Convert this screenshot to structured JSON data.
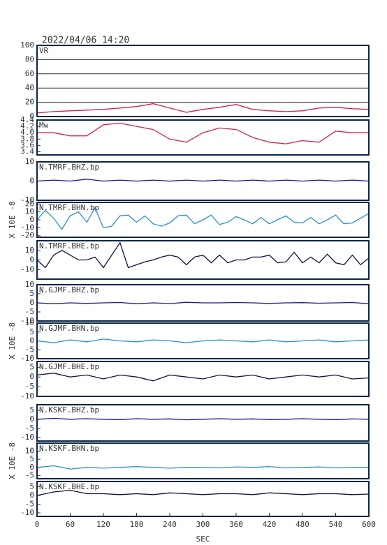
{
  "chart_data": [
    {
      "type": "line",
      "title": "2022/04/06 14:20",
      "label": "VR",
      "color": "#d0204f",
      "grid": true,
      "xlim": [
        0,
        600
      ],
      "ylim": [
        0,
        100
      ],
      "yticks": [
        0,
        20,
        40,
        60,
        80,
        100
      ],
      "x": [
        0,
        30,
        60,
        90,
        120,
        150,
        180,
        210,
        240,
        270,
        300,
        330,
        360,
        390,
        420,
        450,
        480,
        510,
        540,
        570,
        600
      ],
      "values": [
        5,
        7,
        8,
        9,
        10,
        12,
        14,
        18,
        12,
        6,
        10,
        13,
        17,
        10,
        8,
        7,
        8,
        12,
        13,
        11,
        10
      ]
    },
    {
      "type": "line",
      "label": "Mw",
      "color": "#d0204f",
      "xlim": [
        0,
        600
      ],
      "ylim": [
        3.3,
        4.4
      ],
      "yticks": [
        3.4,
        3.6,
        3.8,
        {
          "value": 4,
          "label": "4.0"
        },
        4.2,
        4.4
      ],
      "x": [
        0,
        30,
        60,
        90,
        120,
        150,
        180,
        210,
        240,
        270,
        300,
        330,
        360,
        390,
        420,
        450,
        480,
        510,
        540,
        570,
        600
      ],
      "values": [
        4.0,
        4.0,
        3.9,
        3.9,
        4.25,
        4.3,
        4.2,
        4.1,
        3.8,
        3.7,
        4.0,
        4.15,
        4.1,
        3.85,
        3.7,
        3.65,
        3.75,
        3.7,
        4.05,
        4.0,
        4.0
      ]
    },
    {
      "type": "line",
      "label": "N.TMRF.BHZ.bp",
      "color": "#1a1a8c",
      "xlim": [
        0,
        600
      ],
      "ylim": [
        -10,
        10
      ],
      "yticks": [
        -10,
        0,
        10
      ],
      "x": [
        0,
        30,
        60,
        90,
        120,
        150,
        180,
        210,
        240,
        270,
        300,
        330,
        360,
        390,
        420,
        450,
        480,
        510,
        540,
        570,
        600
      ],
      "values": [
        0,
        0.5,
        0,
        1,
        0,
        0.5,
        0,
        0.5,
        0,
        0.5,
        0,
        0.5,
        0,
        0.5,
        0,
        0.5,
        0,
        0.5,
        0,
        0.5,
        0
      ]
    },
    {
      "type": "line",
      "label": "N.TMRF.BHN.bp",
      "ylabel": "X 10E -8",
      "color": "#2a8fd0",
      "xlim": [
        0,
        600
      ],
      "ylim": [
        -22,
        22
      ],
      "yticks": [
        -20,
        -10,
        0,
        10,
        20
      ],
      "x": [
        0,
        15,
        30,
        45,
        60,
        75,
        90,
        105,
        120,
        135,
        150,
        165,
        180,
        195,
        210,
        225,
        240,
        255,
        270,
        285,
        300,
        315,
        330,
        345,
        360,
        375,
        390,
        405,
        420,
        435,
        450,
        465,
        480,
        495,
        510,
        525,
        540,
        555,
        570,
        585,
        600
      ],
      "values": [
        0,
        12,
        2,
        -12,
        5,
        10,
        -3,
        15,
        -10,
        -8,
        5,
        6,
        -3,
        5,
        -5,
        -8,
        -4,
        5,
        6,
        -5,
        0,
        6,
        -6,
        -3,
        4,
        0,
        -5,
        3,
        -5,
        0,
        5,
        -3,
        -4,
        3,
        -5,
        0,
        6,
        -5,
        -4,
        2,
        8
      ]
    },
    {
      "type": "line",
      "label": "N.TMRF.BHE.bp",
      "color": "#101040",
      "xlim": [
        0,
        600
      ],
      "ylim": [
        -20,
        20
      ],
      "yticks": [
        -10,
        0,
        10
      ],
      "x": [
        0,
        15,
        30,
        45,
        60,
        75,
        90,
        105,
        120,
        135,
        150,
        165,
        180,
        195,
        210,
        225,
        240,
        255,
        270,
        285,
        300,
        315,
        330,
        345,
        360,
        375,
        390,
        405,
        420,
        435,
        450,
        465,
        480,
        495,
        510,
        525,
        540,
        555,
        570,
        585,
        600
      ],
      "values": [
        0,
        -8,
        5,
        10,
        5,
        0,
        0,
        3,
        -8,
        5,
        18,
        -8,
        -5,
        -2,
        0,
        3,
        5,
        3,
        -5,
        3,
        5,
        -3,
        5,
        -3,
        0,
        0,
        3,
        3,
        5,
        -3,
        -2,
        8,
        -3,
        3,
        -3,
        6,
        -3,
        -5,
        5,
        -5,
        2
      ]
    },
    {
      "type": "line",
      "label": "N.GJMF.BHZ.bp",
      "color": "#1a1a8c",
      "xlim": [
        0,
        600
      ],
      "ylim": [
        -10,
        10
      ],
      "yticks": [
        -10,
        -5,
        0,
        5,
        10
      ],
      "x": [
        0,
        30,
        60,
        90,
        120,
        150,
        180,
        210,
        240,
        270,
        300,
        330,
        360,
        390,
        420,
        450,
        480,
        510,
        540,
        570,
        600
      ],
      "values": [
        0,
        -0.5,
        0,
        -0.3,
        0,
        0.2,
        -0.5,
        0,
        -0.4,
        0.3,
        0,
        0,
        0.2,
        0,
        -0.3,
        0,
        0.1,
        -0.2,
        0,
        0.2,
        -0.5
      ]
    },
    {
      "type": "line",
      "label": "N.GJMF.BHN.bp",
      "ylabel": "X 10E -8",
      "color": "#2a8fd0",
      "xlim": [
        0,
        600
      ],
      "ylim": [
        -10,
        10
      ],
      "yticks": [
        -10,
        -5,
        0,
        5,
        10
      ],
      "x": [
        0,
        30,
        60,
        90,
        120,
        150,
        180,
        210,
        240,
        270,
        300,
        330,
        360,
        390,
        420,
        450,
        480,
        510,
        540,
        570,
        600
      ],
      "values": [
        0,
        -1,
        0.5,
        -0.5,
        1,
        0,
        -0.5,
        0.5,
        0,
        -1,
        0,
        0.5,
        0,
        -0.5,
        0.5,
        -0.5,
        0,
        0.5,
        -0.5,
        0,
        0.5
      ]
    },
    {
      "type": "line",
      "label": "N.GJMF.BHE.bp",
      "color": "#101040",
      "xlim": [
        0,
        600
      ],
      "ylim": [
        -10,
        8
      ],
      "yticks": [
        -10,
        -5,
        0,
        5
      ],
      "x": [
        0,
        30,
        60,
        90,
        120,
        150,
        180,
        210,
        240,
        270,
        300,
        330,
        360,
        390,
        420,
        450,
        480,
        510,
        540,
        570,
        600
      ],
      "values": [
        1,
        2,
        0,
        1,
        -1,
        1,
        0,
        -2,
        1,
        0,
        -1,
        1,
        0,
        1,
        -1,
        0,
        1,
        0,
        1,
        -1,
        -0.5
      ]
    },
    {
      "type": "line",
      "label": "N.KSKF.BHZ.bp",
      "color": "#1a1a8c",
      "xlim": [
        0,
        600
      ],
      "ylim": [
        -12,
        8
      ],
      "yticks": [
        -10,
        -5,
        0,
        5
      ],
      "x": [
        0,
        30,
        60,
        90,
        120,
        150,
        180,
        210,
        240,
        270,
        300,
        330,
        360,
        390,
        420,
        450,
        480,
        510,
        540,
        570,
        600
      ],
      "values": [
        0,
        0.5,
        0,
        0.3,
        0,
        -0.2,
        0.3,
        0,
        0.2,
        -0.3,
        0,
        0.3,
        0,
        0.2,
        -0.2,
        0,
        0.3,
        0,
        -0.2,
        0.2,
        0
      ]
    },
    {
      "type": "line",
      "label": "N.KSKF.BHN.bp",
      "ylabel": "X 10E -8",
      "color": "#2a8fd0",
      "xlim": [
        0,
        600
      ],
      "ylim": [
        -7,
        15
      ],
      "yticks": [
        -5,
        0,
        5,
        10
      ],
      "x": [
        0,
        30,
        60,
        90,
        120,
        150,
        180,
        210,
        240,
        270,
        300,
        330,
        360,
        390,
        420,
        450,
        480,
        510,
        540,
        570,
        600
      ],
      "values": [
        0,
        1,
        -1,
        0,
        -0.5,
        0,
        0.5,
        0,
        -0.5,
        0,
        0,
        -0.3,
        0.3,
        0,
        0.5,
        -0.3,
        0,
        0.3,
        -0.3,
        0,
        0
      ]
    },
    {
      "type": "line",
      "label": "N.KSKF.BHE.bp",
      "color": "#101040",
      "xlim": [
        0,
        600
      ],
      "ylim": [
        -12,
        8
      ],
      "yticks": [
        -10,
        -5,
        0,
        5
      ],
      "xticks": [
        0,
        60,
        120,
        180,
        240,
        300,
        360,
        420,
        480,
        540,
        600
      ],
      "xlabel": "SEC",
      "x": [
        0,
        30,
        60,
        90,
        120,
        150,
        180,
        210,
        240,
        270,
        300,
        330,
        360,
        390,
        420,
        450,
        480,
        510,
        540,
        570,
        600
      ],
      "values": [
        0,
        2,
        3,
        1,
        1,
        0.5,
        1,
        0.5,
        1.5,
        1,
        0.5,
        1,
        1,
        0.5,
        1.5,
        1,
        0.5,
        1,
        1,
        0.5,
        0.8
      ]
    }
  ]
}
